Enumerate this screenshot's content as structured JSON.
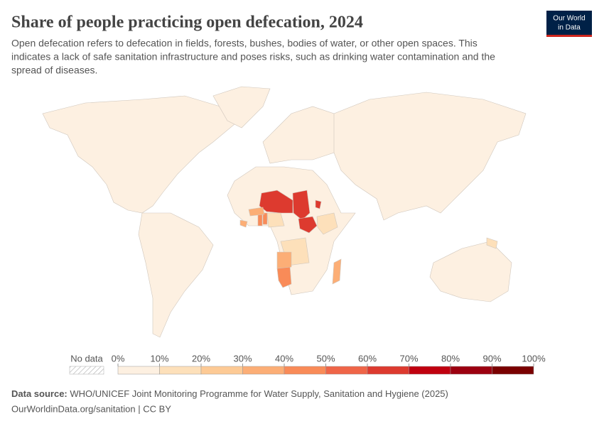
{
  "chart_data": {
    "type": "map",
    "title": "Share of people practicing open defecation, 2024",
    "subtitle": [
      "Open defecation refers to defecation in fields, forests, bushes, bodies of water, or other open spaces. This",
      "indicates a lack of safe sanitation infrastructure and poses risks, such as drinking water contamination and the",
      "spread of diseases."
    ],
    "logo": [
      "Our World",
      "in Data"
    ],
    "values": [
      66,
      65,
      67,
      60,
      45,
      18,
      47,
      40,
      38,
      38,
      16,
      17,
      30,
      35,
      15
    ],
    "legend": {
      "no_data_label": "No data",
      "ticks": [
        {
          "value": 0,
          "label": "0%"
        },
        {
          "value": 10,
          "label": "10%"
        },
        {
          "value": 20,
          "label": "20%"
        },
        {
          "value": 30,
          "label": "30%"
        },
        {
          "value": 40,
          "label": "40%"
        },
        {
          "value": 50,
          "label": "50%"
        },
        {
          "value": 60,
          "label": "60%"
        },
        {
          "value": 70,
          "label": "70%"
        },
        {
          "value": 80,
          "label": "80%"
        },
        {
          "value": 90,
          "label": "90%"
        },
        {
          "value": 100,
          "label": "100%"
        }
      ],
      "colors": [
        "#fdf0e1",
        "#fde0ba",
        "#fdca95",
        "#fcae76",
        "#f98b58",
        "#ef6548",
        "#dd3a2f",
        "#c0000f",
        "#9c0010",
        "#7a0000"
      ]
    },
    "source_label": "Data source:",
    "source": "WHO/UNICEF Joint Monitoring Programme for Water Supply, Sanitation and Hygiene (2025)",
    "url": "OurWorldinData.org/sanitation | CC BY"
  }
}
